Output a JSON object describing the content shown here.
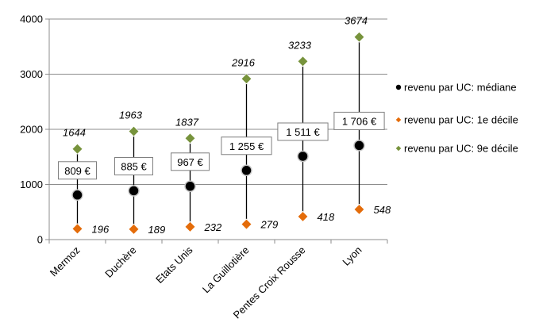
{
  "chart_data": {
    "type": "scatter",
    "categories": [
      "Mermoz",
      "Duchère",
      "Etats Unis",
      "La Guillotière",
      "Pentes Croix Rousse",
      "Lyon"
    ],
    "series": [
      {
        "name": "revenu par UC: médiane",
        "values": [
          809,
          885,
          967,
          1255,
          1511,
          1706
        ],
        "labels": [
          "809 €",
          "885 €",
          "967 €",
          "1 255 €",
          "1 511 €",
          "1 706 €"
        ],
        "color": "#000000",
        "marker": "circle"
      },
      {
        "name": "revenu par UC: 1e décile",
        "values": [
          196,
          189,
          232,
          279,
          418,
          548
        ],
        "labels": [
          "196",
          "189",
          "232",
          "279",
          "418",
          "548"
        ],
        "color": "#e46c0a",
        "marker": "diamond"
      },
      {
        "name": "revenu par UC: 9e décile",
        "values": [
          1644,
          1963,
          1837,
          2916,
          3233,
          3674
        ],
        "labels": [
          "1644",
          "1963",
          "1837",
          "2916",
          "3233",
          "3674"
        ],
        "color": "#77933c",
        "marker": "diamond"
      }
    ],
    "yticks": [
      "0",
      "1000",
      "2000",
      "3000",
      "4000"
    ],
    "ylim": [
      0,
      4000
    ],
    "grid": true,
    "legend_position": "right"
  }
}
